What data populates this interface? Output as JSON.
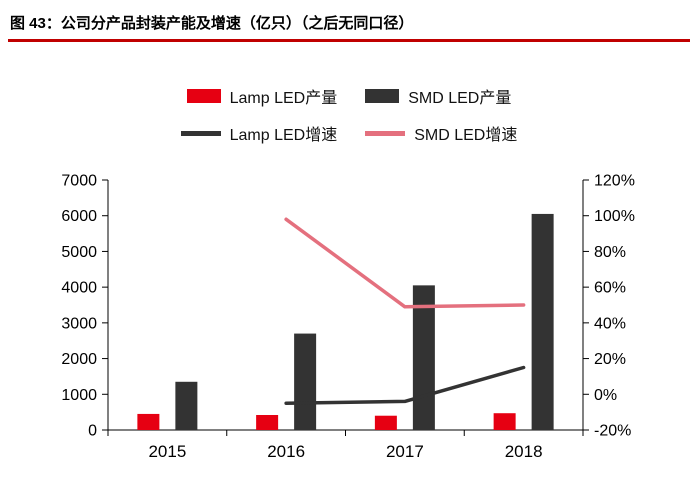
{
  "header": {
    "title": "图 43：公司分产品封装产能及增速（亿只）（之后无同口径）",
    "rule_color": "#c00000"
  },
  "chart_data": {
    "type": "combo-bar-line",
    "categories": [
      "2015",
      "2016",
      "2017",
      "2018"
    ],
    "bar_series": [
      {
        "name": "Lamp LED产量",
        "color": "#e60012",
        "axis": "left",
        "values": [
          450,
          420,
          400,
          470
        ]
      },
      {
        "name": "SMD LED产量",
        "color": "#333333",
        "axis": "left",
        "values": [
          1350,
          2700,
          4050,
          6050
        ]
      }
    ],
    "line_series": [
      {
        "name": "Lamp LED增速",
        "color": "#333333",
        "axis": "right",
        "values": [
          null,
          -5,
          -4,
          15
        ]
      },
      {
        "name": "SMD LED增速",
        "color": "#e4707e",
        "axis": "right",
        "values": [
          null,
          98,
          49,
          50
        ]
      }
    ],
    "left_axis": {
      "min": 0,
      "max": 7000,
      "tick_values": [
        0,
        1000,
        2000,
        3000,
        4000,
        5000,
        6000,
        7000
      ],
      "tick_labels": [
        "0",
        "1000",
        "2000",
        "3000",
        "4000",
        "5000",
        "6000",
        "7000"
      ]
    },
    "right_axis": {
      "min": -20,
      "max": 120,
      "tick_values": [
        -20,
        0,
        20,
        40,
        60,
        80,
        100,
        120
      ],
      "tick_labels": [
        "-20%",
        "0%",
        "20%",
        "40%",
        "60%",
        "80%",
        "100%",
        "120%"
      ]
    },
    "legend_position": "top",
    "grid": false,
    "background": "#ffffff"
  }
}
